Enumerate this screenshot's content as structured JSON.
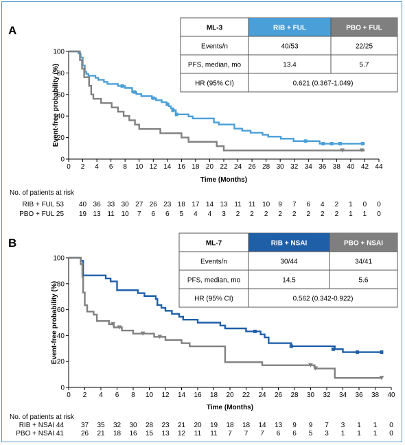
{
  "chart_data": [
    {
      "type": "line",
      "panel_label": "A",
      "ylabel": "Event-free probability (%)",
      "xlabel": "Time (Months)",
      "xlim": [
        0,
        44
      ],
      "ylim": [
        0,
        100
      ],
      "xticks": [
        0,
        2,
        4,
        6,
        8,
        10,
        12,
        14,
        16,
        18,
        20,
        22,
        24,
        26,
        28,
        30,
        32,
        34,
        36,
        38,
        40,
        42,
        44
      ],
      "yticks": [
        0,
        20,
        40,
        60,
        80,
        100
      ],
      "colors": {
        "rib": "#4a9fd8",
        "pbo": "#808080",
        "rib_header": "#4a9fd8",
        "pbo_header": "#7f7f7f"
      },
      "table": {
        "title": "ML-3",
        "col1": "RIB + FUL",
        "col2": "PBO + FUL",
        "rows": [
          {
            "label": "Events/n",
            "v1": "40/53",
            "v2": "22/25"
          },
          {
            "label": "PFS, median, mo",
            "v1": "13.4",
            "v2": "5.7"
          }
        ],
        "hr_label": "HR (95% CI)",
        "hr_value": "0.621 (0.367-1.049)"
      },
      "series": [
        {
          "name": "RIB + FUL",
          "x": [
            0,
            0.3,
            0.6,
            1.0,
            1.4,
            1.7,
            2.0,
            2.3,
            2.5,
            2.8,
            3.1,
            3.4,
            3.8,
            4.2,
            4.6,
            5.0,
            5.5,
            6.0,
            6.5,
            7.0,
            7.5,
            8.0,
            9.0,
            9.6,
            10.3,
            11.1,
            11.8,
            12.4,
            13.2,
            13.9,
            14.2,
            14.5,
            14.8,
            15.2,
            16.0,
            17.0,
            17.6,
            18.3,
            19.0,
            20.0,
            20.6,
            21.3,
            22.0,
            23.5,
            24.6,
            25.8,
            26.6,
            27.5,
            28.3,
            29.2,
            30.1,
            31.0,
            31.9,
            32.8,
            33.6,
            34.5,
            35.6,
            36.8,
            37.7,
            38.6,
            39.5,
            40.5,
            41.5,
            42.0
          ],
          "y": [
            100,
            100,
            100,
            100,
            98.1,
            94.3,
            86.8,
            81.1,
            79.2,
            77.4,
            77.4,
            77.4,
            75.5,
            73.6,
            73.6,
            71.7,
            69.8,
            69.8,
            69.8,
            67.9,
            67.9,
            66.0,
            62.3,
            60.4,
            58.5,
            58.5,
            56.6,
            54.7,
            52.8,
            50.9,
            49.1,
            47.2,
            45.3,
            41.5,
            41.5,
            39.6,
            37.7,
            37.7,
            37.7,
            37.7,
            34.0,
            32.1,
            32.1,
            28.3,
            26.4,
            24.5,
            24.5,
            22.6,
            20.8,
            20.8,
            18.9,
            18.9,
            16.7,
            16.7,
            16.7,
            16.7,
            14.3,
            14.3,
            14.3,
            14.3,
            14.3,
            14.3,
            14.3,
            14.3
          ]
        },
        {
          "name": "PBO + FUL",
          "x": [
            0,
            0.5,
            1.2,
            1.6,
            1.9,
            2.2,
            2.5,
            2.9,
            3.2,
            3.5,
            4.0,
            4.6,
            5.3,
            6.1,
            7.0,
            7.8,
            8.6,
            9.4,
            10.0,
            11.0,
            12.0,
            13.0,
            14.0,
            15.0,
            16.0,
            17.0,
            18.0,
            19.0,
            20.0,
            21.0,
            22.0,
            23.0,
            25.0,
            27.0,
            30.0,
            33.0,
            35.0,
            37.0,
            39.0,
            41.0,
            42.0
          ],
          "y": [
            100,
            100,
            100,
            92,
            84,
            76,
            76,
            68,
            60,
            56,
            56,
            52,
            52,
            48,
            44,
            40,
            36,
            32,
            28,
            28,
            28,
            24,
            24,
            24,
            20,
            16,
            16,
            16,
            16,
            12,
            8,
            8,
            8,
            8,
            8,
            8,
            8,
            8,
            8,
            8,
            8
          ]
        }
      ],
      "censor_marks": {
        "RIB + FUL": [
          [
            7.6,
            67.9
          ],
          [
            9.3,
            62.3
          ],
          [
            12.0,
            56.6
          ],
          [
            14.0,
            50.9
          ],
          [
            14.8,
            45.3
          ],
          [
            15.3,
            41.5
          ],
          [
            33.6,
            16.7
          ],
          [
            36.1,
            14.3
          ],
          [
            37.3,
            14.3
          ],
          [
            38.5,
            14.3
          ],
          [
            41.7,
            14.3
          ]
        ],
        "PBO + FUL": [
          [
            38.8,
            8
          ],
          [
            41.6,
            8
          ]
        ]
      },
      "risk": {
        "title": "No. of patients at risk",
        "rows": [
          {
            "label": "RIB + FUL",
            "n": "53",
            "values": [
              "40",
              "36",
              "33",
              "30",
              "27",
              "26",
              "23",
              "18",
              "17",
              "14",
              "13",
              "11",
              "11",
              "10",
              "9",
              "7",
              "6",
              "4",
              "2",
              "1",
              "0",
              "0"
            ]
          },
          {
            "label": "PBO + FUL",
            "n": "25",
            "values": [
              "19",
              "13",
              "11",
              "10",
              "7",
              "6",
              "6",
              "5",
              "4",
              "4",
              "3",
              "2",
              "2",
              "2",
              "2",
              "2",
              "2",
              "2",
              "2",
              "1",
              "1",
              "0"
            ]
          }
        ]
      }
    },
    {
      "type": "line",
      "panel_label": "B",
      "ylabel": "Event-free probability (%)",
      "xlabel": "Time (Months)",
      "xlim": [
        0,
        40
      ],
      "ylim": [
        0,
        100
      ],
      "xticks": [
        0,
        2,
        4,
        6,
        8,
        10,
        12,
        14,
        16,
        18,
        20,
        22,
        24,
        26,
        28,
        30,
        32,
        34,
        36,
        38,
        40
      ],
      "yticks": [
        0,
        20,
        40,
        60,
        80,
        100
      ],
      "colors": {
        "rib": "#1f5fa8",
        "pbo": "#808080",
        "rib_header": "#1f5fa8",
        "pbo_header": "#7f7f7f"
      },
      "table": {
        "title": "ML-7",
        "col1": "RIB + NSAI",
        "col2": "PBO + NSAI",
        "rows": [
          {
            "label": "Events/n",
            "v1": "30/44",
            "v2": "34/41"
          },
          {
            "label": "PFS, median, mo",
            "v1": "14.5",
            "v2": "5.6"
          }
        ],
        "hr_label": "HR (95% CI)",
        "hr_value": "0.562 (0.342-0.922)"
      },
      "series": [
        {
          "name": "RIB + NSAI",
          "x": [
            0,
            1.0,
            1.5,
            1.8,
            4.0,
            4.6,
            5.2,
            6.0,
            8.0,
            8.6,
            9.4,
            10.8,
            11.0,
            11.5,
            12.0,
            12.8,
            13.7,
            14.2,
            14.6,
            16.0,
            18.8,
            19.4,
            20.3,
            21.3,
            22.0,
            23.3,
            23.8,
            24.3,
            24.8,
            27.0,
            27.6,
            31.5,
            33.0,
            34.0,
            38.8
          ],
          "y": [
            100,
            100,
            97.7,
            86.4,
            86.4,
            84.1,
            81.8,
            75.0,
            75.0,
            72.7,
            70.5,
            68.2,
            63.6,
            61.4,
            59.1,
            56.8,
            54.5,
            52.3,
            52.3,
            50.0,
            47.7,
            45.5,
            45.5,
            45.5,
            43.2,
            43.2,
            40.9,
            38.6,
            34.1,
            34.1,
            31.8,
            31.8,
            29.5,
            27.2,
            27.2
          ]
        },
        {
          "name": "PBO + NSAI",
          "x": [
            0,
            1.2,
            1.5,
            1.7,
            1.8,
            2.0,
            2.3,
            2.7,
            3.1,
            3.5,
            4.3,
            5.0,
            5.6,
            6.2,
            6.6,
            7.2,
            8.0,
            10.0,
            10.6,
            11.2,
            12.0,
            13.0,
            14.0,
            15.0,
            19.0,
            19.4,
            24.0,
            28.0,
            30.0,
            30.5,
            30.8,
            32.5,
            33.0,
            35.0,
            38.8
          ],
          "y": [
            100,
            100,
            95.1,
            85.4,
            73.2,
            63.4,
            58.5,
            58.5,
            56.1,
            51.2,
            51.2,
            48.8,
            46.3,
            46.3,
            43.9,
            43.9,
            41.5,
            41.5,
            39.0,
            39.0,
            36.6,
            36.6,
            34.1,
            31.7,
            31.7,
            19.5,
            17.1,
            17.1,
            17.1,
            14.6,
            14.6,
            14.6,
            7.3,
            7.3,
            7.3
          ]
        }
      ],
      "censor_marks": {
        "RIB + NSAI": [
          [
            23.1,
            43.2
          ],
          [
            27.6,
            31.8
          ],
          [
            32.8,
            29.5
          ],
          [
            35.8,
            27.2
          ],
          [
            38.8,
            27.2
          ]
        ],
        "PBO + NSAI": [
          [
            5.5,
            48.8
          ],
          [
            6.3,
            46.3
          ],
          [
            9.2,
            41.5
          ],
          [
            11.3,
            39.0
          ],
          [
            30.0,
            17.1
          ],
          [
            30.6,
            14.6
          ],
          [
            38.8,
            7.3
          ]
        ]
      },
      "risk": {
        "title": "No. of patients at risk",
        "rows": [
          {
            "label": "RIB + NSAI",
            "n": "44",
            "values": [
              "37",
              "35",
              "32",
              "30",
              "28",
              "23",
              "21",
              "20",
              "19",
              "18",
              "18",
              "14",
              "13",
              "9",
              "9",
              "7",
              "3",
              "1",
              "1",
              "0"
            ]
          },
          {
            "label": "PBO + NSAI",
            "n": "41",
            "values": [
              "26",
              "21",
              "18",
              "16",
              "15",
              "13",
              "12",
              "11",
              "11",
              "7",
              "7",
              "7",
              "6",
              "6",
              "5",
              "3",
              "1",
              "1",
              "1",
              "0"
            ]
          }
        ]
      }
    }
  ]
}
